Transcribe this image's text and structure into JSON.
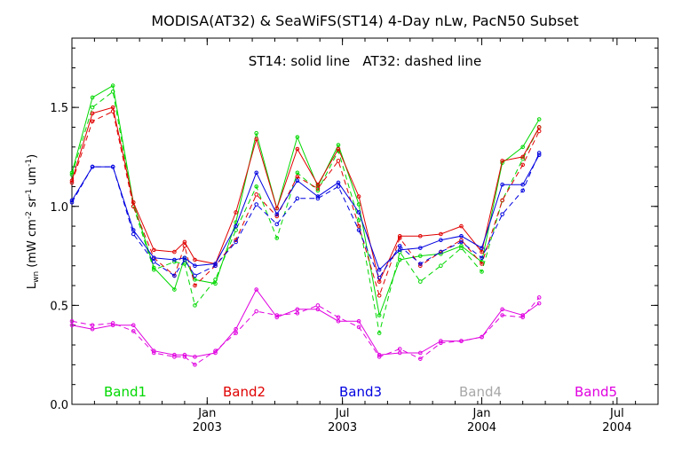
{
  "chart_data": {
    "type": "line",
    "title": "MODISA(AT32) & SeaWiFS(ST14) 4-Day nLw, PacN50 Subset",
    "annotation": "ST14: solid line   AT32: dashed line",
    "ylabel": {
      "base": "L",
      "base_sub": "wn",
      "open": " (mW cm",
      "sup1": "-2",
      "mid1": " sr",
      "sup2": "-1",
      "mid2": " um",
      "sup3": "-1",
      "close": ")"
    },
    "ylim": [
      0.0,
      1.85
    ],
    "yticks": [
      {
        "value": 0.0,
        "label": "0.0"
      },
      {
        "value": 0.5,
        "label": "0.5"
      },
      {
        "value": 1.0,
        "label": "1.0"
      },
      {
        "value": 1.5,
        "label": "1.5"
      }
    ],
    "xlim": [
      0,
      28.6
    ],
    "xticks": [
      {
        "x": 6.6,
        "month": "Jan",
        "year": "2003"
      },
      {
        "x": 13.2,
        "month": "Jul",
        "year": "2003"
      },
      {
        "x": 20.0,
        "month": "Jan",
        "year": "2004"
      },
      {
        "x": 26.6,
        "month": "Jul",
        "year": "2004"
      }
    ],
    "x": [
      0,
      1,
      2,
      3,
      4,
      5,
      6,
      7,
      8,
      9,
      10,
      11,
      12,
      13,
      14,
      15,
      16,
      17,
      18,
      19,
      20,
      21,
      22,
      23,
      24,
      25,
      26,
      27,
      28,
      28.6
    ],
    "series": [
      {
        "name": "Band1",
        "color": "#00d800",
        "solid": [
          1.17,
          1.55,
          1.61,
          1.02,
          0.69,
          0.58,
          0.74,
          0.63,
          0.61,
          0.92,
          1.37,
          0.99,
          1.35,
          1.1,
          1.31,
          1.01,
          0.45,
          0.73,
          0.75,
          0.76,
          0.8,
          0.72,
          1.22,
          1.3,
          1.44
        ],
        "dashed": [
          1.16,
          1.5,
          1.58,
          1.0,
          0.68,
          0.72,
          0.71,
          0.5,
          0.63,
          0.88,
          1.1,
          0.84,
          1.17,
          1.08,
          1.28,
          0.93,
          0.36,
          0.77,
          0.62,
          0.7,
          0.79,
          0.67,
          1.03,
          1.24,
          1.4
        ]
      },
      {
        "name": "Band2",
        "color": "#e00000",
        "solid": [
          1.13,
          1.47,
          1.5,
          1.02,
          0.78,
          0.77,
          0.82,
          0.73,
          0.71,
          0.97,
          1.34,
          0.99,
          1.29,
          1.11,
          1.29,
          1.05,
          0.62,
          0.85,
          0.85,
          0.86,
          0.9,
          0.77,
          1.23,
          1.25,
          1.4
        ],
        "dashed": [
          1.12,
          1.43,
          1.48,
          1.0,
          0.74,
          0.65,
          0.8,
          0.6,
          0.7,
          0.83,
          1.06,
          0.95,
          1.15,
          1.09,
          1.23,
          0.9,
          0.55,
          0.84,
          0.7,
          0.77,
          0.83,
          0.71,
          1.03,
          1.21,
          1.38
        ]
      },
      {
        "name": "Band3",
        "color": "#0000e0",
        "solid": [
          1.03,
          1.2,
          1.2,
          0.88,
          0.74,
          0.73,
          0.74,
          0.7,
          0.71,
          0.9,
          1.17,
          0.96,
          1.13,
          1.05,
          1.12,
          0.97,
          0.68,
          0.78,
          0.79,
          0.83,
          0.85,
          0.79,
          1.11,
          1.11,
          1.26
        ],
        "dashed": [
          1.02,
          1.2,
          1.2,
          0.86,
          0.72,
          0.65,
          0.73,
          0.65,
          0.7,
          0.82,
          1.01,
          0.91,
          1.04,
          1.04,
          1.1,
          0.88,
          0.64,
          0.8,
          0.71,
          0.77,
          0.82,
          0.74,
          0.96,
          1.08,
          1.27
        ]
      },
      {
        "name": "Band4",
        "color": "#a8a8a8",
        "solid": [],
        "dashed": []
      },
      {
        "name": "Band5",
        "color": "#e000e0",
        "solid": [
          0.4,
          0.38,
          0.4,
          0.4,
          0.27,
          0.25,
          0.25,
          0.24,
          0.26,
          0.38,
          0.58,
          0.44,
          0.48,
          0.48,
          0.42,
          0.42,
          0.25,
          0.26,
          0.26,
          0.32,
          0.32,
          0.34,
          0.48,
          0.45,
          0.51
        ],
        "dashed": [
          0.42,
          0.4,
          0.41,
          0.37,
          0.26,
          0.24,
          0.24,
          0.2,
          0.27,
          0.36,
          0.47,
          0.45,
          0.46,
          0.5,
          0.44,
          0.39,
          0.24,
          0.28,
          0.23,
          0.31,
          0.32,
          0.34,
          0.45,
          0.44,
          0.54
        ]
      }
    ],
    "series_x": [
      0,
      1,
      2,
      3,
      4,
      5,
      5.5,
      6,
      7,
      8,
      9,
      10,
      11,
      12,
      13,
      14,
      15,
      16,
      17,
      18,
      19,
      20,
      21,
      22,
      22.8
    ],
    "grid": false,
    "legend": "bottom"
  }
}
